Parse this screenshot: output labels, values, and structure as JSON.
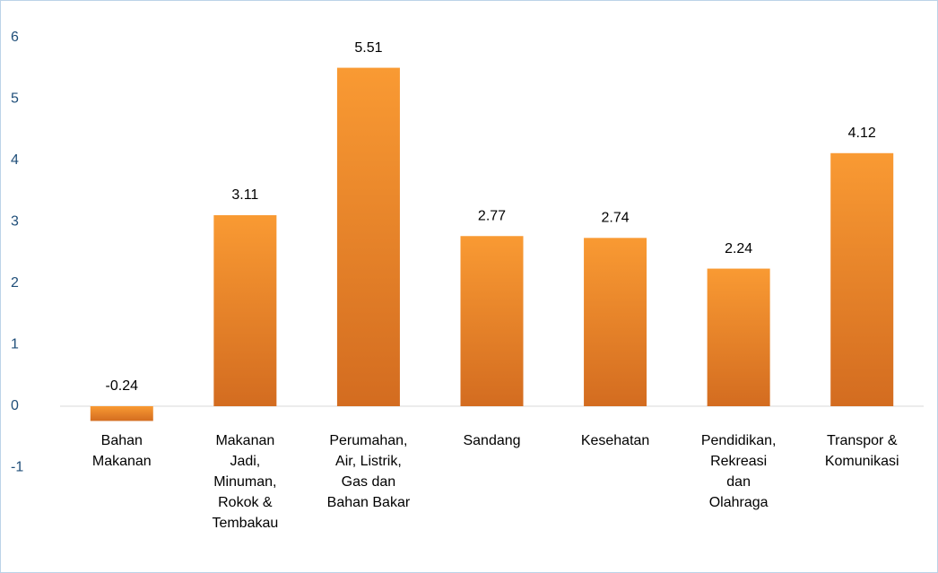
{
  "chart_data": {
    "type": "bar",
    "categories": [
      [
        "Bahan",
        "Makanan"
      ],
      [
        "Makanan",
        "Jadi,",
        "Minuman,",
        "Rokok &",
        "Tembakau"
      ],
      [
        "Perumahan,",
        "Air, Listrik,",
        "Gas dan",
        "Bahan Bakar"
      ],
      [
        "Sandang"
      ],
      [
        "Kesehatan"
      ],
      [
        "Pendidikan,",
        "Rekreasi",
        "dan",
        "Olahraga"
      ],
      [
        "Transpor &",
        "Komunikasi"
      ]
    ],
    "values": [
      -0.24,
      3.11,
      5.51,
      2.77,
      2.74,
      2.24,
      4.12
    ],
    "color": "#f18b2a",
    "ylim": [
      -1,
      6
    ],
    "yticks": [
      -1,
      0,
      1,
      2,
      3,
      4,
      5,
      6
    ],
    "grid": false
  }
}
